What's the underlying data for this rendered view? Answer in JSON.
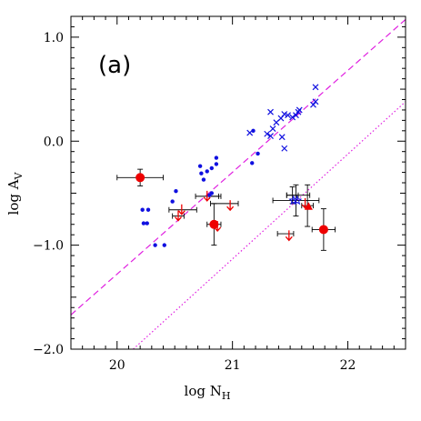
{
  "chart_data": {
    "type": "scatter",
    "panel_label": "(a)",
    "xlabel": "log N",
    "xlabel_sub": "H",
    "ylabel": "log A",
    "ylabel_sub": "V",
    "xlim": [
      19.6,
      22.5
    ],
    "ylim": [
      -2.0,
      1.2
    ],
    "x_ticks": [
      20,
      21,
      22
    ],
    "y_ticks": [
      -2.0,
      -1.0,
      0.0,
      1.0
    ],
    "x_tick_labels": [
      "20",
      "21",
      "22"
    ],
    "y_tick_labels": [
      "−2.0",
      "−1.0",
      "0.0",
      "1.0"
    ],
    "lines": [
      {
        "style": "dashed",
        "color": "#e020e0",
        "x": [
          19.6,
          22.5
        ],
        "y": [
          -1.67,
          1.17
        ]
      },
      {
        "style": "dotted",
        "color": "#e020e0",
        "x": [
          20.14,
          22.5
        ],
        "y": [
          -2.0,
          0.38
        ]
      }
    ],
    "series": [
      {
        "marker": "x",
        "color": "#1010e0",
        "points": [
          [
            21.15,
            0.08
          ],
          [
            21.3,
            0.07
          ],
          [
            21.33,
            0.05
          ],
          [
            21.35,
            0.12
          ],
          [
            21.33,
            0.28
          ],
          [
            21.38,
            0.18
          ],
          [
            21.42,
            0.22
          ],
          [
            21.45,
            0.26
          ],
          [
            21.48,
            0.25
          ],
          [
            21.52,
            0.23
          ],
          [
            21.55,
            0.25
          ],
          [
            21.57,
            0.28
          ],
          [
            21.58,
            0.3
          ],
          [
            21.45,
            -0.07
          ],
          [
            21.43,
            0.04
          ],
          [
            21.7,
            0.35
          ],
          [
            21.72,
            0.38
          ],
          [
            21.72,
            0.52
          ]
        ]
      },
      {
        "marker": "dot",
        "color": "#1010e0",
        "points": [
          [
            20.22,
            -0.66
          ],
          [
            20.27,
            -0.66
          ],
          [
            20.23,
            -0.79
          ],
          [
            20.26,
            -0.79
          ],
          [
            20.33,
            -1.0
          ],
          [
            20.41,
            -1.0
          ],
          [
            20.51,
            -0.48
          ],
          [
            20.48,
            -0.58
          ],
          [
            20.72,
            -0.24
          ],
          [
            20.73,
            -0.31
          ],
          [
            20.75,
            -0.37
          ],
          [
            20.78,
            -0.29
          ],
          [
            20.82,
            -0.26
          ],
          [
            20.86,
            -0.22
          ],
          [
            20.86,
            -0.16
          ],
          [
            21.18,
            0.1
          ],
          [
            21.17,
            -0.21
          ],
          [
            21.22,
            -0.12
          ],
          [
            20.8,
            -0.52
          ],
          [
            20.82,
            -0.5
          ]
        ]
      },
      {
        "marker": "open-star",
        "color": "#1010e0",
        "points": [
          [
            21.53,
            -0.57
          ],
          [
            21.56,
            -0.57
          ]
        ]
      },
      {
        "marker": "big-dot",
        "color": "#ee0000",
        "points": [
          [
            20.2,
            -0.35
          ],
          [
            20.84,
            -0.8
          ],
          [
            21.79,
            -0.85
          ]
        ]
      },
      {
        "marker": "triangle",
        "color": "#ee0000",
        "points": [
          [
            21.66,
            -0.63
          ]
        ]
      },
      {
        "marker": "down-arrow",
        "color": "#ee0000",
        "points": [
          [
            20.53,
            -0.72
          ],
          [
            20.56,
            -0.66
          ],
          [
            20.78,
            -0.53
          ],
          [
            20.87,
            -0.82
          ],
          [
            20.98,
            -0.62
          ],
          [
            21.49,
            -0.91
          ],
          [
            21.63,
            -0.6
          ]
        ]
      }
    ],
    "error_bars": [
      {
        "x": 20.2,
        "y": -0.35,
        "x_err": 0.2,
        "y_err": 0.08
      },
      {
        "x": 20.84,
        "y": -0.8,
        "x_err": 0.06,
        "y_err": 0.2
      },
      {
        "x": 21.79,
        "y": -0.85,
        "x_err": 0.1,
        "y_err": 0.2
      },
      {
        "x": 21.55,
        "y": -0.57,
        "x_err": 0.2,
        "y_err": 0.15
      },
      {
        "x": 21.65,
        "y": -0.62,
        "x_err": 0.05,
        "y_err": 0.2
      },
      {
        "x": 20.53,
        "y": -0.72,
        "x_err": 0.05,
        "y_err": 0
      },
      {
        "x": 20.57,
        "y": -0.66,
        "x_err": 0.12,
        "y_err": 0
      },
      {
        "x": 20.78,
        "y": -0.53,
        "x_err": 0.1,
        "y_err": 0
      },
      {
        "x": 20.85,
        "y": -0.53,
        "x_err": 0.05,
        "y_err": 0
      },
      {
        "x": 20.93,
        "y": -0.6,
        "x_err": 0.12,
        "y_err": 0
      },
      {
        "x": 21.46,
        "y": -0.89,
        "x_err": 0.07,
        "y_err": 0
      },
      {
        "x": 21.57,
        "y": -0.52,
        "x_err": 0.1,
        "y_err": 0
      },
      {
        "x": 21.52,
        "y": -0.52,
        "x_err": 0.05,
        "y_err": 0.08
      }
    ]
  }
}
